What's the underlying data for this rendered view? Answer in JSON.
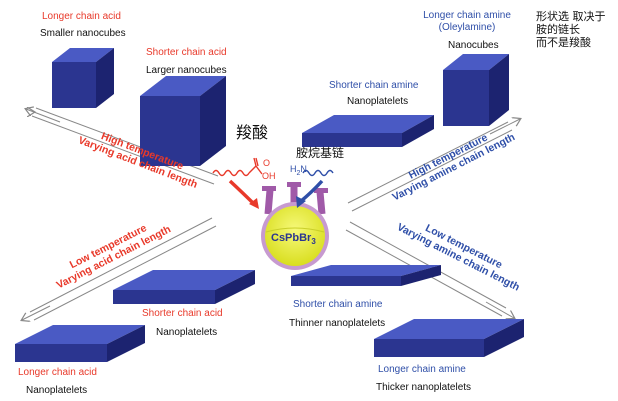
{
  "colors": {
    "acid": "#e8392a",
    "amine": "#2f4fa8",
    "cube_front": "#2b3590",
    "cube_top": "#4a5ac4",
    "cube_side": "#1c2370",
    "flask_liquid": "#e9ef3a",
    "flask_glass": "#a05aa8"
  },
  "top_left": {
    "acid_long": "Longer chain acid",
    "result_small": "Smaller nanocubes",
    "acid_short": "Shorter chain acid",
    "result_large": "Larger nanocubes",
    "arrow_line1": "High temperature",
    "arrow_line2": "Varying acid chain length"
  },
  "top_right": {
    "amine_long": "Longer chain amine",
    "amine_long_note": "(Oleylamine)",
    "result_cubes": "Nanocubes",
    "amine_short": "Shorter chain amine",
    "result_platelets": "Nanoplatelets",
    "arrow_line1": "High temperature",
    "arrow_line2": "Varying amine chain length"
  },
  "bottom_left": {
    "arrow_line1": "Low temperature",
    "arrow_line2": "Varying acid chain length",
    "acid_short": "Shorter chain acid",
    "result_platelets_a": "Nanoplatelets",
    "acid_long": "Longer chain acid",
    "result_platelets_b": "Nanoplatelets"
  },
  "bottom_right": {
    "arrow_line1": "Low temperature",
    "arrow_line2": "Varying amine chain length",
    "amine_short": "Shorter chain amine",
    "result_thin": "Thinner nanoplatelets",
    "amine_long": "Longer chain amine",
    "result_thick": "Thicker nanoplatelets"
  },
  "center": {
    "compound": "CsPbBr",
    "compound_sub": "3",
    "acid_group_o": "O",
    "acid_group_oh": "OH",
    "amine_group": "H",
    "amine_group_sub": "2",
    "amine_group_n": "N"
  },
  "annotations": {
    "acid_cn": "羧酸",
    "amine_cn": "胺烷基链",
    "note_line1": "形状选  取决于",
    "note_line2": "胺的链长",
    "note_line3": "而不是羧酸"
  }
}
